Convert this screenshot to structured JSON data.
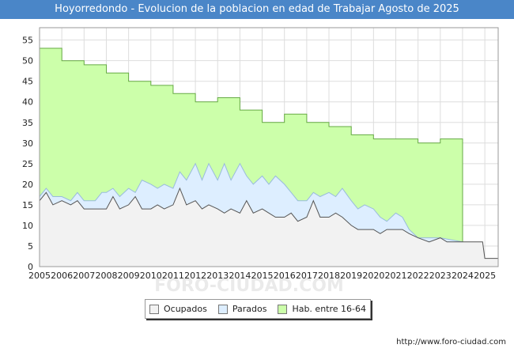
{
  "header": {
    "title": "Hoyorredondo - Evolucion de la poblacion en edad de Trabajar Agosto de 2025"
  },
  "footer": {
    "url": "http://www.foro-ciudad.com"
  },
  "colors": {
    "title_bg": "#4a86c8",
    "ocupados": "#f2f2f2",
    "parados": "#ddeeff",
    "hab": "#ccffaa",
    "hab_line": "#66aa44",
    "parados_line": "#99bbdd",
    "ocupados_line": "#555555"
  },
  "chart_data": {
    "type": "area",
    "title": "Hoyorredondo - Evolucion de la poblacion en edad de Trabajar Agosto de 2025",
    "xlim": [
      2005,
      2025.6
    ],
    "ylim": [
      0,
      58
    ],
    "x_ticks": [
      "2005",
      "2006",
      "2007",
      "2008",
      "2009",
      "2010",
      "2011",
      "2012",
      "2013",
      "2014",
      "2015",
      "2016",
      "2017",
      "2018",
      "2019",
      "2020",
      "2021",
      "2022",
      "2023",
      "2024",
      "2025"
    ],
    "y_ticks": [
      "0",
      "5",
      "10",
      "15",
      "20",
      "25",
      "30",
      "35",
      "40",
      "45",
      "50",
      "55"
    ],
    "grid": true,
    "legend_position": "bottom-center",
    "series": [
      {
        "name": "Hab. entre 16-64",
        "points": [
          [
            2005.0,
            53
          ],
          [
            2006.0,
            50
          ],
          [
            2007.0,
            49
          ],
          [
            2008.0,
            47
          ],
          [
            2009.0,
            45
          ],
          [
            2010.0,
            44
          ],
          [
            2011.0,
            42
          ],
          [
            2012.0,
            40
          ],
          [
            2013.0,
            41
          ],
          [
            2014.0,
            38
          ],
          [
            2015.0,
            35
          ],
          [
            2016.0,
            37
          ],
          [
            2017.0,
            35
          ],
          [
            2018.0,
            34
          ],
          [
            2019.0,
            32
          ],
          [
            2020.0,
            31
          ],
          [
            2021.0,
            31
          ],
          [
            2022.0,
            30
          ],
          [
            2023.0,
            31
          ],
          [
            2024.0,
            null
          ]
        ]
      },
      {
        "name": "Parados",
        "points": [
          [
            2005.0,
            17
          ],
          [
            2005.3,
            19
          ],
          [
            2005.6,
            17
          ],
          [
            2006.0,
            17
          ],
          [
            2006.4,
            16
          ],
          [
            2006.7,
            18
          ],
          [
            2007.0,
            16
          ],
          [
            2007.5,
            16
          ],
          [
            2007.8,
            18
          ],
          [
            2008.0,
            18
          ],
          [
            2008.3,
            19
          ],
          [
            2008.6,
            17
          ],
          [
            2009.0,
            19
          ],
          [
            2009.3,
            18
          ],
          [
            2009.6,
            21
          ],
          [
            2010.0,
            20
          ],
          [
            2010.3,
            19
          ],
          [
            2010.6,
            20
          ],
          [
            2011.0,
            19
          ],
          [
            2011.3,
            23
          ],
          [
            2011.6,
            21
          ],
          [
            2012.0,
            25
          ],
          [
            2012.3,
            21
          ],
          [
            2012.6,
            25
          ],
          [
            2013.0,
            21
          ],
          [
            2013.3,
            25
          ],
          [
            2013.6,
            21
          ],
          [
            2014.0,
            25
          ],
          [
            2014.3,
            22
          ],
          [
            2014.6,
            20
          ],
          [
            2015.0,
            22
          ],
          [
            2015.3,
            20
          ],
          [
            2015.6,
            22
          ],
          [
            2016.0,
            20
          ],
          [
            2016.3,
            18
          ],
          [
            2016.6,
            16
          ],
          [
            2017.0,
            16
          ],
          [
            2017.3,
            18
          ],
          [
            2017.6,
            17
          ],
          [
            2018.0,
            18
          ],
          [
            2018.3,
            17
          ],
          [
            2018.6,
            19
          ],
          [
            2019.0,
            16
          ],
          [
            2019.3,
            14
          ],
          [
            2019.6,
            15
          ],
          [
            2020.0,
            14
          ],
          [
            2020.3,
            12
          ],
          [
            2020.6,
            11
          ],
          [
            2021.0,
            13
          ],
          [
            2021.3,
            12
          ],
          [
            2021.6,
            9
          ],
          [
            2022.0,
            7
          ],
          [
            2023.0,
            7
          ],
          [
            2024.0,
            6
          ]
        ]
      },
      {
        "name": "Ocupados",
        "points": [
          [
            2005.0,
            16
          ],
          [
            2005.3,
            18
          ],
          [
            2005.6,
            15
          ],
          [
            2006.0,
            16
          ],
          [
            2006.4,
            15
          ],
          [
            2006.7,
            16
          ],
          [
            2007.0,
            14
          ],
          [
            2007.5,
            14
          ],
          [
            2008.0,
            14
          ],
          [
            2008.3,
            17
          ],
          [
            2008.6,
            14
          ],
          [
            2009.0,
            15
          ],
          [
            2009.3,
            17
          ],
          [
            2009.6,
            14
          ],
          [
            2010.0,
            14
          ],
          [
            2010.3,
            15
          ],
          [
            2010.6,
            14
          ],
          [
            2011.0,
            15
          ],
          [
            2011.3,
            19
          ],
          [
            2011.6,
            15
          ],
          [
            2012.0,
            16
          ],
          [
            2012.3,
            14
          ],
          [
            2012.6,
            15
          ],
          [
            2013.0,
            14
          ],
          [
            2013.3,
            13
          ],
          [
            2013.6,
            14
          ],
          [
            2014.0,
            13
          ],
          [
            2014.3,
            16
          ],
          [
            2014.6,
            13
          ],
          [
            2015.0,
            14
          ],
          [
            2015.3,
            13
          ],
          [
            2015.6,
            12
          ],
          [
            2016.0,
            12
          ],
          [
            2016.3,
            13
          ],
          [
            2016.6,
            11
          ],
          [
            2017.0,
            12
          ],
          [
            2017.3,
            16
          ],
          [
            2017.6,
            12
          ],
          [
            2018.0,
            12
          ],
          [
            2018.3,
            13
          ],
          [
            2018.6,
            12
          ],
          [
            2019.0,
            10
          ],
          [
            2019.3,
            9
          ],
          [
            2019.6,
            9
          ],
          [
            2020.0,
            9
          ],
          [
            2020.3,
            8
          ],
          [
            2020.6,
            9
          ],
          [
            2021.0,
            9
          ],
          [
            2021.3,
            9
          ],
          [
            2021.6,
            8
          ],
          [
            2022.0,
            7
          ],
          [
            2022.5,
            6
          ],
          [
            2023.0,
            7
          ],
          [
            2023.3,
            6
          ],
          [
            2024.0,
            6
          ],
          [
            2024.9,
            6
          ],
          [
            2025.0,
            2
          ],
          [
            2025.6,
            2
          ]
        ]
      }
    ]
  }
}
